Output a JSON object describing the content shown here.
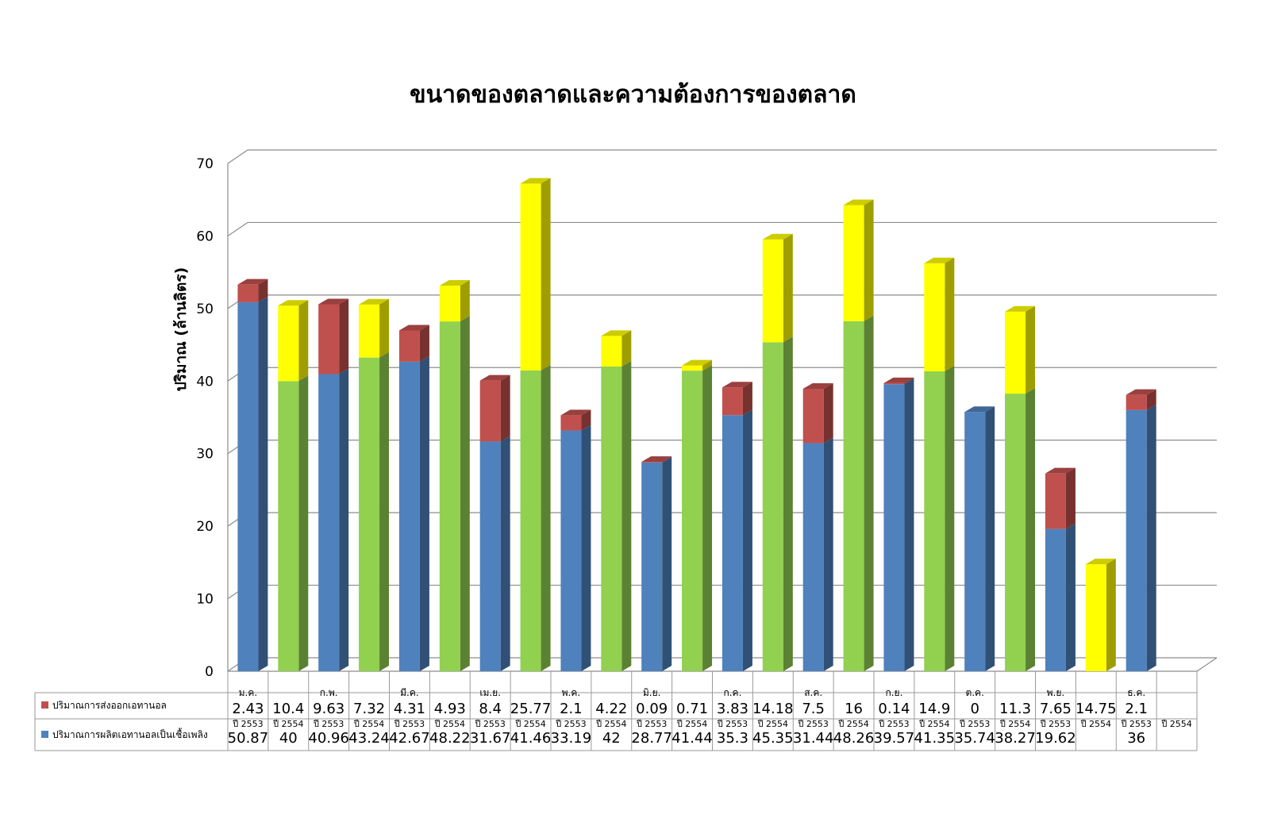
{
  "chart_data": {
    "type": "bar",
    "title": "ขนาดของตลาดและความต้องการของตลาด",
    "ylabel": "ปริมาณ (ล้านลิตร)",
    "xlabel": "",
    "ylim": [
      0,
      70
    ],
    "yticks": [
      "0",
      "10",
      "20",
      "30",
      "40",
      "50",
      "60",
      "70"
    ],
    "stacked": true,
    "grid": true,
    "months": [
      "ม.ค.",
      "ก.พ.",
      "มี.ค.",
      "เม.ย.",
      "พ.ค.",
      "มิ.ย.",
      "ก.ค.",
      "ส.ค.",
      "ก.ย.",
      "ต.ค.",
      "พ.ย.",
      "ธ.ค."
    ],
    "years": [
      "ปี 2553",
      "ปี 2554"
    ],
    "series": [
      {
        "name": "ปริมาณการผลิตเอทานอลเป็นเชื้อเพลิง",
        "values": [
          50.87,
          40,
          40.96,
          43.24,
          42.67,
          48.22,
          31.67,
          41.46,
          33.19,
          42,
          28.77,
          41.44,
          35.3,
          45.35,
          31.44,
          48.26,
          39.57,
          41.35,
          35.74,
          38.27,
          19.62,
          null,
          36,
          null
        ],
        "labels": [
          "50.87",
          "40",
          "40.96",
          "43.24",
          "42.67",
          "48.22",
          "31.67",
          "41.46",
          "33.19",
          "42",
          "28.77",
          "41.44",
          "35.3",
          "45.35",
          "31.44",
          "48.26",
          "39.57",
          "41.35",
          "35.74",
          "38.27",
          "19.62",
          "",
          "36",
          ""
        ]
      },
      {
        "name": "ปริมาณการส่งออกเอทานอล",
        "values": [
          2.43,
          10.4,
          9.63,
          7.32,
          4.31,
          4.93,
          8.4,
          25.77,
          2.1,
          4.22,
          0.09,
          0.71,
          3.83,
          14.18,
          7.5,
          16,
          0.14,
          14.9,
          0,
          11.3,
          7.65,
          14.75,
          2.1,
          null
        ],
        "labels": [
          "2.43",
          "10.4",
          "9.63",
          "7.32",
          "4.31",
          "4.93",
          "8.4",
          "25.77",
          "2.1",
          "4.22",
          "0.09",
          "0.71",
          "3.83",
          "14.18",
          "7.5",
          "16",
          "0.14",
          "14.9",
          "0",
          "11.3",
          "7.65",
          "14.75",
          "2.1",
          ""
        ]
      }
    ],
    "colors": {
      "production": "#4f81bd",
      "export": "#c0504d",
      "production_2554": "#92d050",
      "export_2554": "#ffff00"
    }
  }
}
